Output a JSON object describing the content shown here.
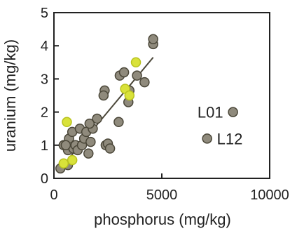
{
  "chart_data": {
    "type": "scatter",
    "title": "",
    "xlabel": "phosphorus (mg/kg)",
    "ylabel": "uranium (mg/kg)",
    "xlim": [
      0,
      10000
    ],
    "ylim": [
      0,
      5
    ],
    "x_ticks": [
      0,
      5000,
      10000
    ],
    "y_ticks": [
      0,
      1,
      2,
      3,
      4,
      5
    ],
    "grid": false,
    "legend": "none",
    "colors": {
      "gray_marker": "#8f8a7c",
      "yellow_marker": "#d9e23a",
      "marker_edge": "#4a4638",
      "trend_line": "#4a4638",
      "axis": "#222222"
    },
    "series": [
      {
        "color": "gray",
        "points": [
          {
            "x": 300,
            "y": 0.3
          },
          {
            "x": 450,
            "y": 1.0
          },
          {
            "x": 650,
            "y": 0.85
          },
          {
            "x": 700,
            "y": 1.2
          },
          {
            "x": 850,
            "y": 1.4
          },
          {
            "x": 900,
            "y": 0.9
          },
          {
            "x": 1000,
            "y": 1.0
          },
          {
            "x": 1100,
            "y": 0.85
          },
          {
            "x": 1200,
            "y": 1.5
          },
          {
            "x": 1300,
            "y": 1.0
          },
          {
            "x": 1400,
            "y": 1.2
          },
          {
            "x": 1500,
            "y": 1.4
          },
          {
            "x": 1600,
            "y": 0.75
          },
          {
            "x": 1700,
            "y": 1.1
          },
          {
            "x": 1800,
            "y": 1.5
          },
          {
            "x": 1650,
            "y": 1.65
          },
          {
            "x": 2000,
            "y": 1.8
          },
          {
            "x": 2350,
            "y": 2.65
          },
          {
            "x": 2300,
            "y": 2.5
          },
          {
            "x": 2400,
            "y": 1.0
          },
          {
            "x": 2500,
            "y": 1.05
          },
          {
            "x": 2600,
            "y": 0.9
          },
          {
            "x": 3000,
            "y": 1.7
          },
          {
            "x": 3050,
            "y": 3.1
          },
          {
            "x": 3250,
            "y": 3.2
          },
          {
            "x": 3450,
            "y": 2.3
          },
          {
            "x": 3500,
            "y": 2.65
          },
          {
            "x": 3850,
            "y": 3.1
          },
          {
            "x": 4200,
            "y": 2.9
          },
          {
            "x": 4600,
            "y": 4.05
          },
          {
            "x": 4600,
            "y": 4.2
          },
          {
            "x": 650,
            "y": 0.4
          },
          {
            "x": 550,
            "y": 1.0
          },
          {
            "x": 7100,
            "y": 1.2
          },
          {
            "x": 8300,
            "y": 2.0
          }
        ]
      },
      {
        "color": "yellow",
        "points": [
          {
            "x": 450,
            "y": 0.45
          },
          {
            "x": 600,
            "y": 1.7
          },
          {
            "x": 850,
            "y": 0.55
          },
          {
            "x": 3300,
            "y": 2.7
          },
          {
            "x": 3500,
            "y": 2.5
          },
          {
            "x": 3800,
            "y": 3.5
          }
        ]
      }
    ],
    "trend_line": {
      "x": [
        500,
        4600
      ],
      "y": [
        0.45,
        3.65
      ]
    },
    "annotations": [
      {
        "text": "L01",
        "x": 8300,
        "y": 2.0
      },
      {
        "text": "L12",
        "x": 7100,
        "y": 1.2
      }
    ]
  }
}
